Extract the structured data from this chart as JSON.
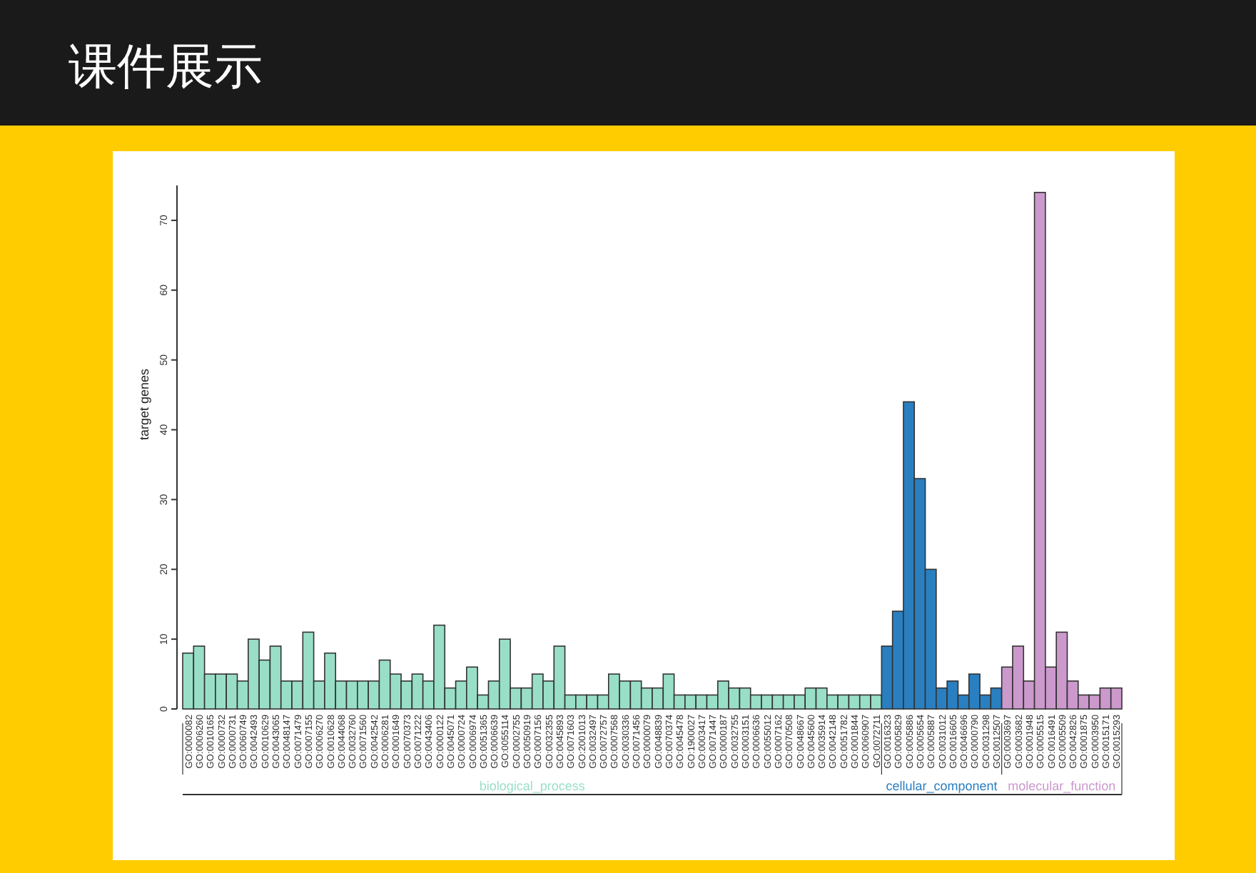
{
  "chart_data": {
    "type": "bar",
    "title": "课件展示",
    "ylabel": "target genes",
    "ylim": [
      0,
      75
    ],
    "yticks": [
      0,
      10,
      20,
      30,
      40,
      50,
      60,
      70
    ],
    "grid": false,
    "legend": false,
    "categories": [
      "GO:0000082",
      "GO:0006260",
      "GO:0010165",
      "GO:0000732",
      "GO:0000731",
      "GO:0060749",
      "GO:0042493",
      "GO:0010629",
      "GO:0043065",
      "GO:0048147",
      "GO:0071479",
      "GO:0007155",
      "GO:0006270",
      "GO:0010628",
      "GO:0044068",
      "GO:0032760",
      "GO:0071560",
      "GO:0042542",
      "GO:0006281",
      "GO:0001649",
      "GO:0070373",
      "GO:0071222",
      "GO:0043406",
      "GO:0000122",
      "GO:0045071",
      "GO:0000724",
      "GO:0006974",
      "GO:0051365",
      "GO:0006639",
      "GO:0055114",
      "GO:0002755",
      "GO:0050919",
      "GO:0007156",
      "GO:0032355",
      "GO:0045893",
      "GO:0071603",
      "GO:2001013",
      "GO:0032497",
      "GO:0072757",
      "GO:0007568",
      "GO:0030336",
      "GO:0071456",
      "GO:0000079",
      "GO:0048839",
      "GO:0070374",
      "GO:0045478",
      "GO:1900027",
      "GO:0003417",
      "GO:0071447",
      "GO:0000187",
      "GO:0032755",
      "GO:0003151",
      "GO:0006636",
      "GO:0055012",
      "GO:0007162",
      "GO:0070508",
      "GO:0048667",
      "GO:0045600",
      "GO:0035914",
      "GO:0042148",
      "GO:0051782",
      "GO:0001844",
      "GO:0060907",
      "GO:0072711",
      "GO:0016323",
      "GO:0005829",
      "GO:0005886",
      "GO:0005654",
      "GO:0005887",
      "GO:0031012",
      "GO:0016605",
      "GO:0046696",
      "GO:0000790",
      "GO:0031298",
      "GO:0012507",
      "GO:0003697",
      "GO:0003682",
      "GO:0001948",
      "GO:0005515",
      "GO:0016491",
      "GO:0005509",
      "GO:0042826",
      "GO:0001875",
      "GO:0003950",
      "GO:0015171",
      "GO:0015293"
    ],
    "series": [
      {
        "name": "biological_process",
        "color": "#99dfc8",
        "values": [
          8,
          9,
          5,
          5,
          5,
          4,
          10,
          7,
          9,
          4,
          4,
          11,
          4,
          8,
          4,
          4,
          4,
          4,
          7,
          5,
          4,
          5,
          4,
          12,
          3,
          4,
          6,
          2,
          4,
          10,
          3,
          3,
          5,
          4,
          9,
          2,
          2,
          2,
          2,
          5,
          4,
          4,
          3,
          3,
          5,
          2,
          2,
          2,
          2,
          4,
          3,
          3,
          2,
          2,
          2,
          2,
          2,
          3,
          3,
          2,
          2,
          2,
          2,
          2,
          null,
          null,
          null,
          null,
          null,
          null,
          null,
          null,
          null,
          null,
          null,
          null,
          null,
          null,
          null,
          null,
          null,
          null,
          null,
          null,
          null,
          null
        ]
      },
      {
        "name": "cellular_component",
        "color": "#2a7fc0",
        "values": [
          null,
          null,
          null,
          null,
          null,
          null,
          null,
          null,
          null,
          null,
          null,
          null,
          null,
          null,
          null,
          null,
          null,
          null,
          null,
          null,
          null,
          null,
          null,
          null,
          null,
          null,
          null,
          null,
          null,
          null,
          null,
          null,
          null,
          null,
          null,
          null,
          null,
          null,
          null,
          null,
          null,
          null,
          null,
          null,
          null,
          null,
          null,
          null,
          null,
          null,
          null,
          null,
          null,
          null,
          null,
          null,
          null,
          null,
          null,
          null,
          null,
          null,
          null,
          null,
          9,
          14,
          44,
          33,
          20,
          3,
          4,
          2,
          5,
          2,
          3,
          null,
          null,
          null,
          null,
          null,
          null,
          null,
          null,
          null,
          null,
          null
        ]
      },
      {
        "name": "molecular_function",
        "color": "#cc99cc",
        "values": [
          null,
          null,
          null,
          null,
          null,
          null,
          null,
          null,
          null,
          null,
          null,
          null,
          null,
          null,
          null,
          null,
          null,
          null,
          null,
          null,
          null,
          null,
          null,
          null,
          null,
          null,
          null,
          null,
          null,
          null,
          null,
          null,
          null,
          null,
          null,
          null,
          null,
          null,
          null,
          null,
          null,
          null,
          null,
          null,
          null,
          null,
          null,
          null,
          null,
          null,
          null,
          null,
          null,
          null,
          null,
          null,
          null,
          null,
          null,
          null,
          null,
          null,
          null,
          null,
          null,
          null,
          null,
          null,
          null,
          null,
          null,
          null,
          null,
          null,
          null,
          6,
          9,
          4,
          74,
          6,
          11,
          4,
          2,
          2,
          3,
          3
        ]
      }
    ]
  }
}
